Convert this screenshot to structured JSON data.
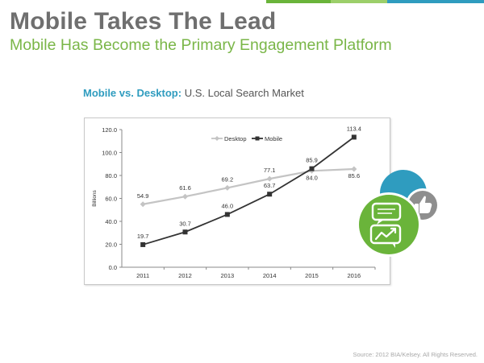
{
  "header": {
    "title": "Mobile Takes The Lead",
    "subtitle": "Mobile Has Become the Primary Engagement Platform"
  },
  "chart_heading": {
    "highlight": "Mobile vs. Desktop:",
    "rest": " U.S. Local Search Market"
  },
  "colors": {
    "title": "#6f6f6f",
    "subtitle": "#7ab648",
    "heading_highlight": "#2f9cbf",
    "desktop_series": "#c4c4c4",
    "mobile_series": "#333333",
    "badge_teal": "#2f9cbf",
    "badge_green": "#6ab43a",
    "badge_gray": "#8e8e8e",
    "top_bar": [
      "#6ab43a",
      "#9ccf6a",
      "#2f9cbf"
    ]
  },
  "icons": [
    "chat-bubbles-icon",
    "growth-chart-icon",
    "thumbs-up-icon"
  ],
  "chart_data": {
    "type": "line",
    "title": "",
    "xlabel": "",
    "ylabel": "Billions",
    "categories": [
      "2011",
      "2012",
      "2013",
      "2014",
      "2015",
      "2016"
    ],
    "ylim": [
      0,
      120
    ],
    "yticks": [
      "0.0",
      "20.0",
      "40.0",
      "60.0",
      "80.0",
      "100.0",
      "120.0"
    ],
    "grid": false,
    "legend_position": "top-center",
    "series": [
      {
        "name": "Desktop",
        "values": [
          54.9,
          61.6,
          69.2,
          77.1,
          84.0,
          85.6
        ],
        "labels": [
          "54.9",
          "61.6",
          "69.2",
          "77.1",
          "84.0",
          "85.6"
        ]
      },
      {
        "name": "Mobile",
        "values": [
          19.7,
          30.7,
          46.0,
          63.7,
          85.9,
          113.4
        ],
        "labels": [
          "19.7",
          "30.7",
          "46.0",
          "63.7",
          "85.9",
          "113.4"
        ]
      }
    ]
  },
  "footer": {
    "source": "Source: 2012 BIA/Kelsey. All Rights Reserved."
  }
}
